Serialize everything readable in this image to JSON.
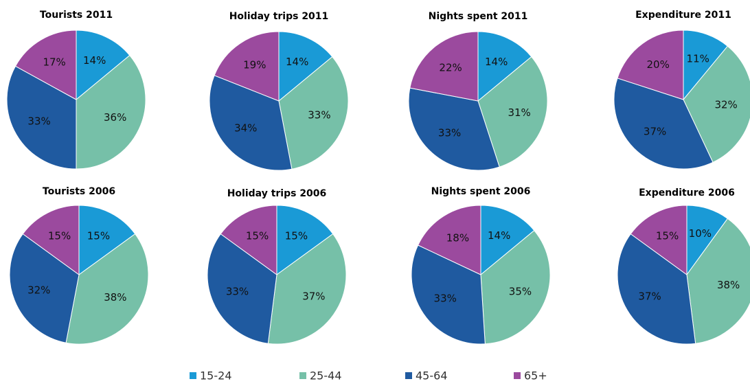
{
  "chart_data": [
    {
      "type": "pie",
      "title": "Tourists 2011",
      "categories": [
        "15-24",
        "25-44",
        "45-64",
        "65+"
      ],
      "values": [
        14,
        36,
        33,
        17
      ],
      "value_labels": [
        "14%",
        "36%",
        "33%",
        "17%"
      ],
      "colors": [
        "#1a9ad6",
        "#76c0a8",
        "#1f5aa0",
        "#9b4a9e"
      ]
    },
    {
      "type": "pie",
      "title": "Holiday trips 2011",
      "categories": [
        "15-24",
        "25-44",
        "45-64",
        "65+"
      ],
      "values": [
        14,
        33,
        34,
        19
      ],
      "value_labels": [
        "14%",
        "33%",
        "34%",
        "19%"
      ],
      "colors": [
        "#1a9ad6",
        "#76c0a8",
        "#1f5aa0",
        "#9b4a9e"
      ]
    },
    {
      "type": "pie",
      "title": "Nights spent 2011",
      "categories": [
        "15-24",
        "25-44",
        "45-64",
        "65+"
      ],
      "values": [
        14,
        31,
        33,
        22
      ],
      "value_labels": [
        "14%",
        "31%",
        "33%",
        "22%"
      ],
      "colors": [
        "#1a9ad6",
        "#76c0a8",
        "#1f5aa0",
        "#9b4a9e"
      ]
    },
    {
      "type": "pie",
      "title": "Expenditure 2011",
      "categories": [
        "15-24",
        "25-44",
        "45-64",
        "65+"
      ],
      "values": [
        11,
        32,
        37,
        20
      ],
      "value_labels": [
        "11%",
        "32%",
        "37%",
        "20%"
      ],
      "colors": [
        "#1a9ad6",
        "#76c0a8",
        "#1f5aa0",
        "#9b4a9e"
      ]
    },
    {
      "type": "pie",
      "title": "Tourists 2006",
      "categories": [
        "15-24",
        "25-44",
        "45-64",
        "65+"
      ],
      "values": [
        15,
        38,
        32,
        15
      ],
      "value_labels": [
        "15%",
        "38%",
        "32%",
        "15%"
      ],
      "colors": [
        "#1a9ad6",
        "#76c0a8",
        "#1f5aa0",
        "#9b4a9e"
      ]
    },
    {
      "type": "pie",
      "title": "Holiday trips 2006",
      "categories": [
        "15-24",
        "25-44",
        "45-64",
        "65+"
      ],
      "values": [
        15,
        37,
        33,
        15
      ],
      "value_labels": [
        "15%",
        "37%",
        "33%",
        "15%"
      ],
      "colors": [
        "#1a9ad6",
        "#76c0a8",
        "#1f5aa0",
        "#9b4a9e"
      ]
    },
    {
      "type": "pie",
      "title": "Nights spent 2006",
      "categories": [
        "15-24",
        "25-44",
        "45-64",
        "65+"
      ],
      "values": [
        14,
        35,
        33,
        18
      ],
      "value_labels": [
        "14%",
        "35%",
        "33%",
        "18%"
      ],
      "colors": [
        "#1a9ad6",
        "#76c0a8",
        "#1f5aa0",
        "#9b4a9e"
      ]
    },
    {
      "type": "pie",
      "title": "Expenditure 2006",
      "categories": [
        "15-24",
        "25-44",
        "45-64",
        "65+"
      ],
      "values": [
        10,
        38,
        37,
        15
      ],
      "value_labels": [
        "10%",
        "38%",
        "37%",
        "15%"
      ],
      "colors": [
        "#1a9ad6",
        "#76c0a8",
        "#1f5aa0",
        "#9b4a9e"
      ]
    }
  ]
}
